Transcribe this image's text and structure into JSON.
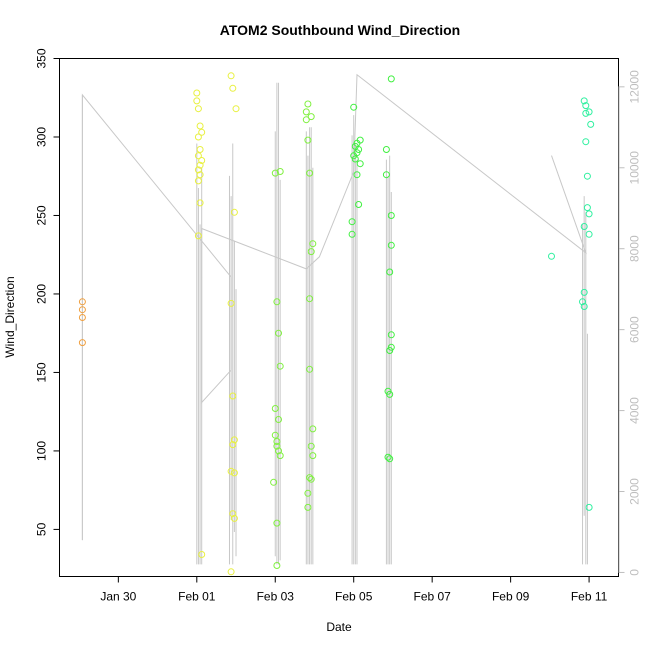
{
  "chart_data": {
    "type": "scatter",
    "title": "ATOM2 Southbound Wind_Direction",
    "xlabel": "Date",
    "ylabel": "Wind_Direction",
    "x_unit": "days in Jan–Feb",
    "xlim": [
      "Jan 28 12:00",
      "Feb 11 18:00"
    ],
    "ylim": [
      20,
      350
    ],
    "y2lim": [
      -100,
      12700
    ],
    "x_ticks": [
      {
        "label": "Jan 30",
        "date": "Jan 30"
      },
      {
        "label": "Feb 01",
        "date": "Feb 01"
      },
      {
        "label": "Feb 03",
        "date": "Feb 03"
      },
      {
        "label": "Feb 05",
        "date": "Feb 05"
      },
      {
        "label": "Feb 07",
        "date": "Feb 07"
      },
      {
        "label": "Feb 09",
        "date": "Feb 09"
      },
      {
        "label": "Feb 11",
        "date": "Feb 11"
      }
    ],
    "y_ticks": [
      50,
      100,
      150,
      200,
      250,
      300,
      350
    ],
    "y2_ticks": [
      0,
      2000,
      4000,
      6000,
      8000,
      10000,
      12000
    ],
    "grid": false,
    "line_color": "#c8c8c8",
    "series": [
      {
        "color": "#f0a040",
        "points": [
          {
            "date": "Jan 29 02:00",
            "y": 169
          },
          {
            "date": "Jan 29 02:00",
            "y": 185
          },
          {
            "date": "Jan 29 02:00",
            "y": 190
          },
          {
            "date": "Jan 29 02:00",
            "y": 195
          }
        ]
      },
      {
        "color": "#e8f040",
        "points": [
          {
            "date": "Feb 01 00:00",
            "y": 328
          },
          {
            "date": "Feb 01 00:00",
            "y": 323
          },
          {
            "date": "Feb 01 01:00",
            "y": 318
          },
          {
            "date": "Feb 01 02:00",
            "y": 307
          },
          {
            "date": "Feb 01 03:00",
            "y": 303
          },
          {
            "date": "Feb 01 01:00",
            "y": 300
          },
          {
            "date": "Feb 01 02:00",
            "y": 292
          },
          {
            "date": "Feb 01 01:00",
            "y": 288
          },
          {
            "date": "Feb 01 03:00",
            "y": 285
          },
          {
            "date": "Feb 01 02:00",
            "y": 282
          },
          {
            "date": "Feb 01 01:00",
            "y": 279
          },
          {
            "date": "Feb 01 02:00",
            "y": 276
          },
          {
            "date": "Feb 01 01:00",
            "y": 272
          },
          {
            "date": "Feb 01 02:00",
            "y": 258
          },
          {
            "date": "Feb 01 01:00",
            "y": 237
          },
          {
            "date": "Feb 01 03:00",
            "y": 34
          },
          {
            "date": "Feb 01 21:00",
            "y": 339
          },
          {
            "date": "Feb 01 22:00",
            "y": 331
          },
          {
            "date": "Feb 02 00:00",
            "y": 318
          },
          {
            "date": "Feb 01 23:00",
            "y": 252
          },
          {
            "date": "Feb 01 21:00",
            "y": 194
          },
          {
            "date": "Feb 01 22:00",
            "y": 135
          },
          {
            "date": "Feb 01 23:00",
            "y": 107
          },
          {
            "date": "Feb 01 22:00",
            "y": 104
          },
          {
            "date": "Feb 01 21:00",
            "y": 87
          },
          {
            "date": "Feb 01 23:00",
            "y": 86
          },
          {
            "date": "Feb 01 22:00",
            "y": 60
          },
          {
            "date": "Feb 01 23:00",
            "y": 57
          },
          {
            "date": "Feb 01 21:00",
            "y": 23
          }
        ]
      },
      {
        "color": "#80f040",
        "points": [
          {
            "date": "Feb 03 00:00",
            "y": 277
          },
          {
            "date": "Feb 03 03:00",
            "y": 278
          },
          {
            "date": "Feb 03 01:00",
            "y": 195
          },
          {
            "date": "Feb 03 02:00",
            "y": 175
          },
          {
            "date": "Feb 03 03:00",
            "y": 154
          },
          {
            "date": "Feb 03 00:00",
            "y": 127
          },
          {
            "date": "Feb 03 02:00",
            "y": 120
          },
          {
            "date": "Feb 03 00:00",
            "y": 110
          },
          {
            "date": "Feb 03 01:00",
            "y": 106
          },
          {
            "date": "Feb 03 01:00",
            "y": 103
          },
          {
            "date": "Feb 03 02:00",
            "y": 100
          },
          {
            "date": "Feb 03 03:00",
            "y": 97
          },
          {
            "date": "Feb 02 23:00",
            "y": 80
          },
          {
            "date": "Feb 03 01:00",
            "y": 54
          },
          {
            "date": "Feb 03 01:00",
            "y": 27
          },
          {
            "date": "Feb 03 20:00",
            "y": 321
          },
          {
            "date": "Feb 03 19:00",
            "y": 316
          },
          {
            "date": "Feb 03 19:00",
            "y": 311
          },
          {
            "date": "Feb 03 22:00",
            "y": 313
          },
          {
            "date": "Feb 03 20:00",
            "y": 298
          },
          {
            "date": "Feb 03 21:00",
            "y": 277
          },
          {
            "date": "Feb 03 23:00",
            "y": 232
          },
          {
            "date": "Feb 03 22:00",
            "y": 227
          },
          {
            "date": "Feb 03 21:00",
            "y": 197
          },
          {
            "date": "Feb 03 21:00",
            "y": 152
          },
          {
            "date": "Feb 03 23:00",
            "y": 114
          },
          {
            "date": "Feb 03 22:00",
            "y": 103
          },
          {
            "date": "Feb 03 23:00",
            "y": 97
          },
          {
            "date": "Feb 03 21:00",
            "y": 83
          },
          {
            "date": "Feb 03 22:00",
            "y": 82
          },
          {
            "date": "Feb 03 20:00",
            "y": 73
          },
          {
            "date": "Feb 03 20:00",
            "y": 64
          }
        ]
      },
      {
        "color": "#40f040",
        "points": [
          {
            "date": "Feb 05 00:00",
            "y": 319
          },
          {
            "date": "Feb 05 04:00",
            "y": 298
          },
          {
            "date": "Feb 05 02:00",
            "y": 296
          },
          {
            "date": "Feb 05 01:00",
            "y": 294
          },
          {
            "date": "Feb 05 03:00",
            "y": 292
          },
          {
            "date": "Feb 05 02:00",
            "y": 290
          },
          {
            "date": "Feb 05 00:00",
            "y": 288
          },
          {
            "date": "Feb 05 01:00",
            "y": 286
          },
          {
            "date": "Feb 05 04:00",
            "y": 283
          },
          {
            "date": "Feb 05 02:00",
            "y": 276
          },
          {
            "date": "Feb 05 03:00",
            "y": 257
          },
          {
            "date": "Feb 04 23:00",
            "y": 246
          },
          {
            "date": "Feb 04 23:00",
            "y": 238
          },
          {
            "date": "Feb 05 23:00",
            "y": 337
          },
          {
            "date": "Feb 05 20:00",
            "y": 292
          },
          {
            "date": "Feb 05 20:00",
            "y": 276
          },
          {
            "date": "Feb 05 23:00",
            "y": 250
          },
          {
            "date": "Feb 05 23:00",
            "y": 231
          },
          {
            "date": "Feb 05 22:00",
            "y": 214
          },
          {
            "date": "Feb 05 23:00",
            "y": 174
          },
          {
            "date": "Feb 05 23:00",
            "y": 166
          },
          {
            "date": "Feb 05 22:00",
            "y": 164
          },
          {
            "date": "Feb 05 21:00",
            "y": 138
          },
          {
            "date": "Feb 05 22:00",
            "y": 136
          },
          {
            "date": "Feb 05 21:00",
            "y": 96
          },
          {
            "date": "Feb 05 22:00",
            "y": 95
          }
        ]
      },
      {
        "color": "#30f0a0",
        "points": [
          {
            "date": "Feb 10 01:00",
            "y": 224
          },
          {
            "date": "Feb 10 21:00",
            "y": 323
          },
          {
            "date": "Feb 10 22:00",
            "y": 320
          },
          {
            "date": "Feb 10 22:00",
            "y": 315
          },
          {
            "date": "Feb 11 00:00",
            "y": 316
          },
          {
            "date": "Feb 11 01:00",
            "y": 308
          },
          {
            "date": "Feb 10 22:00",
            "y": 297
          },
          {
            "date": "Feb 10 23:00",
            "y": 275
          },
          {
            "date": "Feb 10 23:00",
            "y": 255
          },
          {
            "date": "Feb 11 00:00",
            "y": 251
          },
          {
            "date": "Feb 10 21:00",
            "y": 243
          },
          {
            "date": "Feb 11 00:00",
            "y": 238
          },
          {
            "date": "Feb 10 21:00",
            "y": 201
          },
          {
            "date": "Feb 10 20:00",
            "y": 195
          },
          {
            "date": "Feb 10 21:00",
            "y": 192
          },
          {
            "date": "Feb 11 00:00",
            "y": 64
          }
        ]
      }
    ],
    "line_series": {
      "axis": "right",
      "color": "#c8c8c8",
      "path": [
        {
          "date": "Jan 29 02:00",
          "y2": 800
        },
        {
          "date": "Jan 29 02:00",
          "y2": 11800
        },
        {
          "date": "Feb 01 21:00",
          "y2": 7300
        },
        {
          "date": "Feb 01 21:00",
          "y2": 5000
        },
        {
          "date": "Feb 01 03:00",
          "y2": 4200
        },
        {
          "date": "Feb 01 03:00",
          "y2": 8500
        },
        {
          "date": "Feb 03 19:00",
          "y2": 7500
        },
        {
          "date": "Feb 04 03:00",
          "y2": 7800
        },
        {
          "date": "Feb 05 00:00",
          "y2": 9900
        },
        {
          "date": "Feb 05 02:00",
          "y2": 12300
        },
        {
          "date": "Feb 10 22:00",
          "y2": 7900
        },
        {
          "date": "Feb 10 01:00",
          "y2": 10300
        }
      ],
      "spikes": [
        {
          "date": "Jan 29 02:00",
          "lo": 800,
          "hi": 11800
        },
        {
          "date": "Feb 01 00:00",
          "lo": 200,
          "hi": 10600
        },
        {
          "date": "Feb 01 01:00",
          "lo": 200,
          "hi": 9500
        },
        {
          "date": "Feb 01 02:00",
          "lo": 200,
          "hi": 8600
        },
        {
          "date": "Feb 01 03:00",
          "lo": 200,
          "hi": 10000
        },
        {
          "date": "Feb 01 20:00",
          "lo": 200,
          "hi": 9800
        },
        {
          "date": "Feb 01 21:00",
          "lo": 1300,
          "hi": 9300
        },
        {
          "date": "Feb 01 22:00",
          "lo": 200,
          "hi": 10600
        },
        {
          "date": "Feb 01 23:00",
          "lo": 1000,
          "hi": 8200
        },
        {
          "date": "Feb 02 00:00",
          "lo": 400,
          "hi": 7000
        },
        {
          "date": "Feb 03 00:00",
          "lo": 400,
          "hi": 10900
        },
        {
          "date": "Feb 03 01:00",
          "lo": 200,
          "hi": 12100
        },
        {
          "date": "Feb 03 02:00",
          "lo": 200,
          "hi": 12100
        },
        {
          "date": "Feb 03 03:00",
          "lo": 300,
          "hi": 9700
        },
        {
          "date": "Feb 03 19:00",
          "lo": 200,
          "hi": 10900
        },
        {
          "date": "Feb 03 20:00",
          "lo": 200,
          "hi": 10300
        },
        {
          "date": "Feb 03 21:00",
          "lo": 200,
          "hi": 11000
        },
        {
          "date": "Feb 03 22:00",
          "lo": 200,
          "hi": 11000
        },
        {
          "date": "Feb 03 23:00",
          "lo": 200,
          "hi": 10000
        },
        {
          "date": "Feb 04 23:00",
          "lo": 200,
          "hi": 10800
        },
        {
          "date": "Feb 05 00:00",
          "lo": 200,
          "hi": 11300
        },
        {
          "date": "Feb 05 01:00",
          "lo": 200,
          "hi": 10600
        },
        {
          "date": "Feb 05 02:00",
          "lo": 200,
          "hi": 10200
        },
        {
          "date": "Feb 05 20:00",
          "lo": 200,
          "hi": 10200
        },
        {
          "date": "Feb 05 21:00",
          "lo": 200,
          "hi": 9800
        },
        {
          "date": "Feb 05 22:00",
          "lo": 200,
          "hi": 10300
        },
        {
          "date": "Feb 05 23:00",
          "lo": 200,
          "hi": 9400
        },
        {
          "date": "Feb 10 20:00",
          "lo": 200,
          "hi": 8600
        },
        {
          "date": "Feb 10 21:00",
          "lo": 1400,
          "hi": 9300
        },
        {
          "date": "Feb 10 22:00",
          "lo": 200,
          "hi": 8900
        },
        {
          "date": "Feb 10 23:00",
          "lo": 200,
          "hi": 5900
        }
      ]
    }
  }
}
